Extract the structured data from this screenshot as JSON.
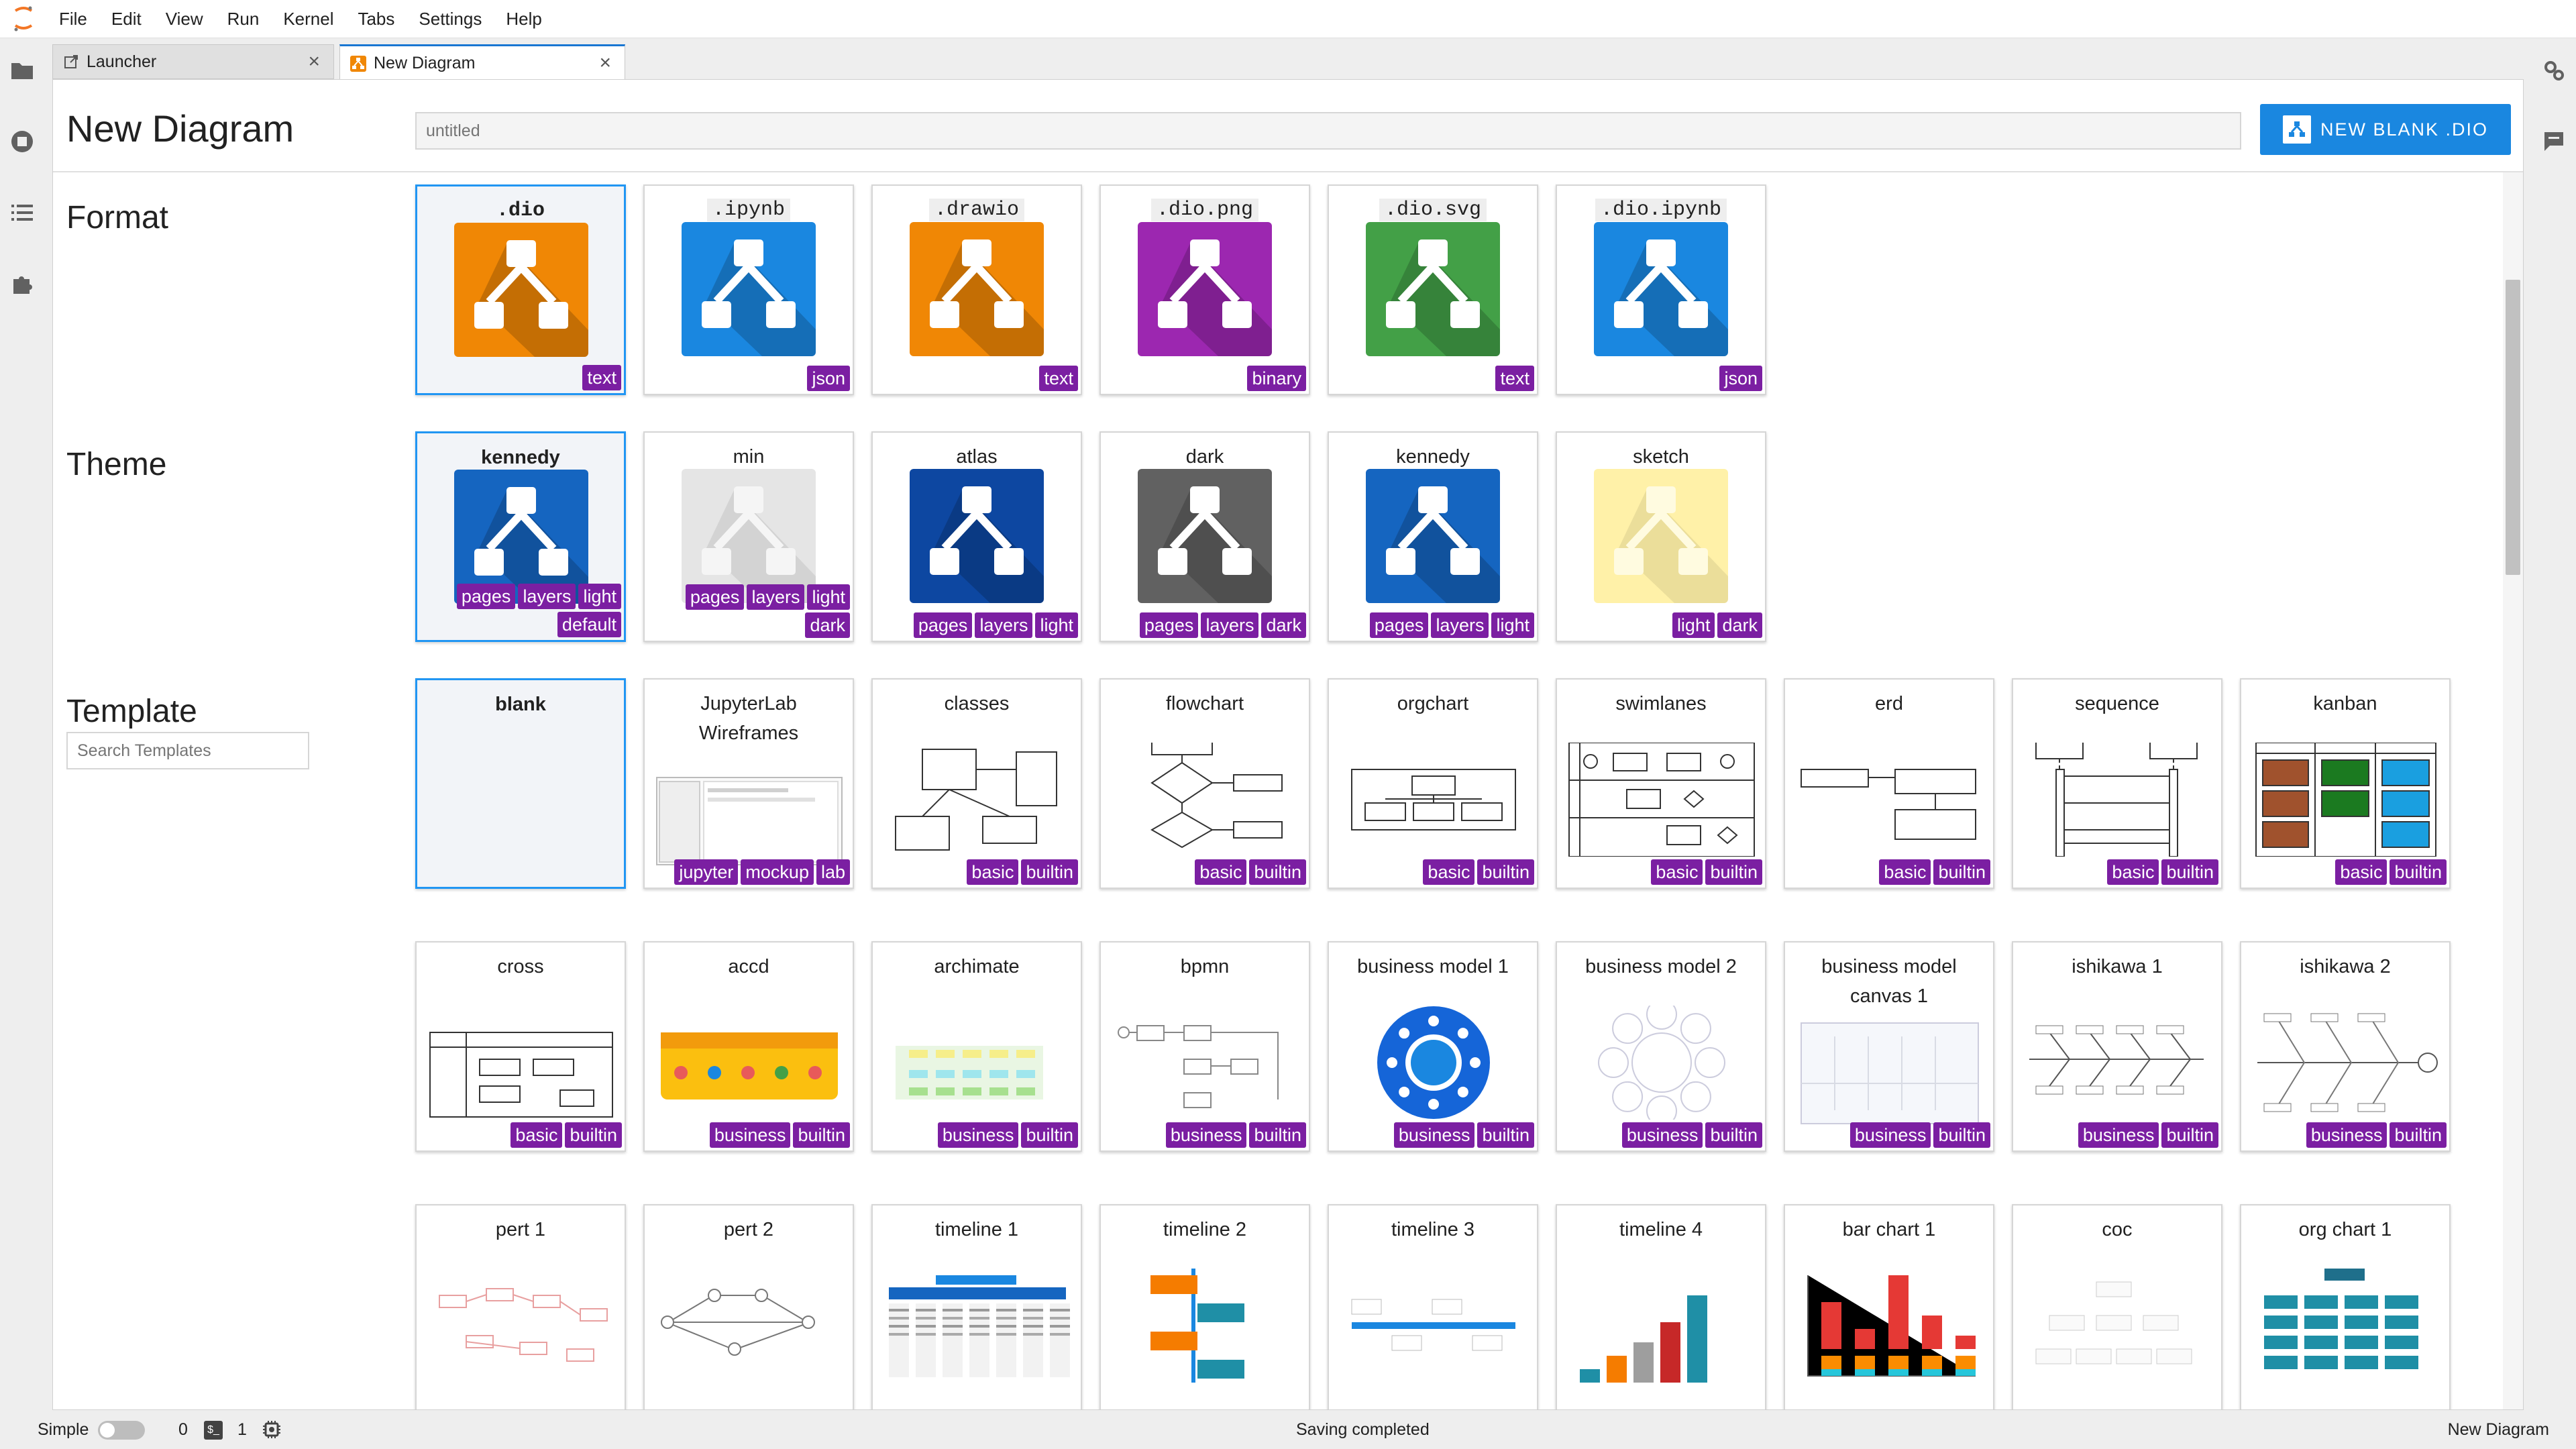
{
  "menubar": {
    "items": [
      "File",
      "Edit",
      "View",
      "Run",
      "Kernel",
      "Tabs",
      "Settings",
      "Help"
    ]
  },
  "tabs": [
    {
      "label": "Launcher",
      "icon": "launcher-icon"
    },
    {
      "label": "New Diagram",
      "icon": "drawio-icon"
    }
  ],
  "header": {
    "title": "New Diagram",
    "name_placeholder": "untitled",
    "new_button": "NEW BLANK .DIO"
  },
  "sections": {
    "format": "Format",
    "theme": "Theme",
    "template": "Template",
    "search_placeholder": "Search Templates"
  },
  "formats": [
    {
      "label": ".dio",
      "color": "#f08705",
      "tag": "text",
      "selected": true
    },
    {
      "label": ".ipynb",
      "color": "#1a87e0",
      "tag": "json"
    },
    {
      "label": ".drawio",
      "color": "#f08705",
      "tag": "text"
    },
    {
      "label": ".dio.png",
      "color": "#9c27b0",
      "tag": "binary"
    },
    {
      "label": ".dio.svg",
      "color": "#43a047",
      "tag": "text"
    },
    {
      "label": ".dio.ipynb",
      "color": "#1a87e0",
      "tag": "json"
    }
  ],
  "themes": [
    {
      "label": "kennedy",
      "color": "#1565c0",
      "tags_top": [
        "pages",
        "layers",
        "light"
      ],
      "tags_bottom": [
        "default"
      ],
      "selected": true
    },
    {
      "label": "min",
      "color": "#e5e5e5",
      "tags_top": [
        "pages",
        "layers",
        "light"
      ],
      "tags_bottom": [
        "dark"
      ]
    },
    {
      "label": "atlas",
      "color": "#0d47a1",
      "tags_top": [
        "pages",
        "layers",
        "light"
      ],
      "tags_bottom": []
    },
    {
      "label": "dark",
      "color": "#616161",
      "tags_top": [
        "pages",
        "layers",
        "dark"
      ],
      "tags_bottom": []
    },
    {
      "label": "kennedy",
      "color": "#1565c0",
      "tags_top": [
        "pages",
        "layers",
        "light"
      ],
      "tags_bottom": []
    },
    {
      "label": "sketch",
      "color": "#fff1a8",
      "tags_top": [
        "light",
        "dark"
      ],
      "tags_bottom": []
    }
  ],
  "templates": [
    {
      "label": "blank",
      "tags": [],
      "selected": true
    },
    {
      "label": "JupyterLab Wireframes",
      "tags": [
        "jupyter",
        "mockup",
        "lab"
      ]
    },
    {
      "label": "classes",
      "tags": [
        "basic",
        "builtin"
      ]
    },
    {
      "label": "flowchart",
      "tags": [
        "basic",
        "builtin"
      ]
    },
    {
      "label": "orgchart",
      "tags": [
        "basic",
        "builtin"
      ]
    },
    {
      "label": "swimlanes",
      "tags": [
        "basic",
        "builtin"
      ]
    },
    {
      "label": "erd",
      "tags": [
        "basic",
        "builtin"
      ]
    },
    {
      "label": "sequence",
      "tags": [
        "basic",
        "builtin"
      ]
    },
    {
      "label": "kanban",
      "tags": [
        "basic",
        "builtin"
      ]
    },
    {
      "label": "cross",
      "tags": [
        "basic",
        "builtin"
      ]
    },
    {
      "label": "accd",
      "tags": [
        "business",
        "builtin"
      ]
    },
    {
      "label": "archimate",
      "tags": [
        "business",
        "builtin"
      ]
    },
    {
      "label": "bpmn",
      "tags": [
        "business",
        "builtin"
      ]
    },
    {
      "label": "business model 1",
      "tags": [
        "business",
        "builtin"
      ]
    },
    {
      "label": "business model 2",
      "tags": [
        "business",
        "builtin"
      ]
    },
    {
      "label": "business model canvas 1",
      "tags": [
        "business",
        "builtin"
      ]
    },
    {
      "label": "ishikawa 1",
      "tags": [
        "business",
        "builtin"
      ]
    },
    {
      "label": "ishikawa 2",
      "tags": [
        "business",
        "builtin"
      ]
    },
    {
      "label": "pert 1",
      "tags": []
    },
    {
      "label": "pert 2",
      "tags": []
    },
    {
      "label": "timeline 1",
      "tags": []
    },
    {
      "label": "timeline 2",
      "tags": []
    },
    {
      "label": "timeline 3",
      "tags": []
    },
    {
      "label": "timeline 4",
      "tags": []
    },
    {
      "label": "bar chart 1",
      "tags": []
    },
    {
      "label": "coc",
      "tags": []
    },
    {
      "label": "org chart 1",
      "tags": []
    }
  ],
  "statusbar": {
    "mode": "Simple",
    "count_terminals": "0",
    "count_kernels": "1",
    "message": "Saving completed",
    "right": "New Diagram"
  }
}
